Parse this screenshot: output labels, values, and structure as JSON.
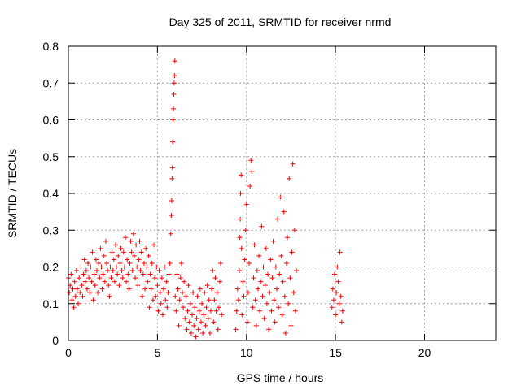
{
  "chart_data": {
    "type": "scatter",
    "title": "Day 325 of 2011, SRMTID for receiver nrmd",
    "xlabel": "GPS time / hours",
    "ylabel": "SRMTID / TECUs",
    "xlim": [
      0,
      24
    ],
    "ylim": [
      0,
      0.8
    ],
    "xticks": [
      0,
      5,
      10,
      15,
      20
    ],
    "yticks": [
      0,
      0.1,
      0.2,
      0.3,
      0.4,
      0.5,
      0.6,
      0.7,
      0.8
    ],
    "xtick_labels": [
      "0",
      "5",
      "10",
      "15",
      "20"
    ],
    "ytick_labels": [
      "0",
      "0.1",
      "0.2",
      "0.3",
      "0.4",
      "0.5",
      "0.6",
      "0.7",
      "0.8"
    ],
    "grid": true,
    "marker": "+",
    "color": "#ff0000",
    "series": [
      {
        "name": "",
        "points": [
          [
            0.0,
            0.17
          ],
          [
            0.05,
            0.13
          ],
          [
            0.1,
            0.15
          ],
          [
            0.15,
            0.18
          ],
          [
            0.2,
            0.11
          ],
          [
            0.25,
            0.14
          ],
          [
            0.3,
            0.09
          ],
          [
            0.35,
            0.16
          ],
          [
            0.4,
            0.12
          ],
          [
            0.45,
            0.19
          ],
          [
            0.5,
            0.14
          ],
          [
            0.55,
            0.1
          ],
          [
            0.6,
            0.17
          ],
          [
            0.65,
            0.13
          ],
          [
            0.7,
            0.2
          ],
          [
            0.75,
            0.15
          ],
          [
            0.8,
            0.12
          ],
          [
            0.85,
            0.18
          ],
          [
            0.9,
            0.22
          ],
          [
            0.95,
            0.16
          ],
          [
            1.0,
            0.19
          ],
          [
            1.05,
            0.14
          ],
          [
            1.1,
            0.21
          ],
          [
            1.15,
            0.17
          ],
          [
            1.2,
            0.13
          ],
          [
            1.25,
            0.2
          ],
          [
            1.3,
            0.16
          ],
          [
            1.35,
            0.24
          ],
          [
            1.4,
            0.11
          ],
          [
            1.45,
            0.18
          ],
          [
            1.5,
            0.15
          ],
          [
            1.55,
            0.22
          ],
          [
            1.6,
            0.19
          ],
          [
            1.65,
            0.13
          ],
          [
            1.7,
            0.21
          ],
          [
            1.75,
            0.17
          ],
          [
            1.8,
            0.25
          ],
          [
            1.85,
            0.2
          ],
          [
            1.9,
            0.14
          ],
          [
            1.95,
            0.18
          ],
          [
            2.0,
            0.23
          ],
          [
            2.05,
            0.16
          ],
          [
            2.1,
            0.27
          ],
          [
            2.15,
            0.21
          ],
          [
            2.2,
            0.19
          ],
          [
            2.25,
            0.15
          ],
          [
            2.3,
            0.12
          ],
          [
            2.35,
            0.2
          ],
          [
            2.4,
            0.17
          ],
          [
            2.45,
            0.24
          ],
          [
            2.5,
            0.19
          ],
          [
            2.55,
            0.22
          ],
          [
            2.6,
            0.16
          ],
          [
            2.65,
            0.26
          ],
          [
            2.7,
            0.2
          ],
          [
            2.75,
            0.18
          ],
          [
            2.8,
            0.23
          ],
          [
            2.85,
            0.15
          ],
          [
            2.9,
            0.21
          ],
          [
            2.95,
            0.25
          ],
          [
            3.0,
            0.19
          ],
          [
            3.05,
            0.17
          ],
          [
            3.1,
            0.24
          ],
          [
            3.15,
            0.2
          ],
          [
            3.2,
            0.28
          ],
          [
            3.25,
            0.16
          ],
          [
            3.3,
            0.22
          ],
          [
            3.35,
            0.18
          ],
          [
            3.4,
            0.14
          ],
          [
            3.45,
            0.21
          ],
          [
            3.5,
            0.27
          ],
          [
            3.55,
            0.24
          ],
          [
            3.6,
            0.19
          ],
          [
            3.65,
            0.29
          ],
          [
            3.7,
            0.23
          ],
          [
            3.75,
            0.17
          ],
          [
            3.8,
            0.26
          ],
          [
            3.85,
            0.2
          ],
          [
            3.9,
            0.15
          ],
          [
            3.95,
            0.22
          ],
          [
            4.0,
            0.27
          ],
          [
            4.05,
            0.19
          ],
          [
            4.1,
            0.24
          ],
          [
            4.15,
            0.12
          ],
          [
            4.2,
            0.18
          ],
          [
            4.25,
            0.21
          ],
          [
            4.3,
            0.14
          ],
          [
            4.35,
            0.25
          ],
          [
            4.4,
            0.2
          ],
          [
            4.45,
            0.16
          ],
          [
            4.5,
            0.23
          ],
          [
            4.55,
            0.09
          ],
          [
            4.6,
            0.18
          ],
          [
            4.65,
            0.14
          ],
          [
            4.7,
            0.21
          ],
          [
            4.75,
            0.11
          ],
          [
            4.8,
            0.26
          ],
          [
            4.85,
            0.17
          ],
          [
            4.9,
            0.12
          ],
          [
            4.95,
            0.2
          ],
          [
            5.0,
            0.15
          ],
          [
            5.05,
            0.08
          ],
          [
            5.1,
            0.19
          ],
          [
            5.15,
            0.13
          ],
          [
            5.2,
            0.1
          ],
          [
            5.25,
            0.17
          ],
          [
            5.3,
            0.07
          ],
          [
            5.35,
            0.14
          ],
          [
            5.4,
            0.2
          ],
          [
            5.45,
            0.11
          ],
          [
            5.5,
            0.16
          ],
          [
            5.55,
            0.09
          ],
          [
            5.6,
            0.13
          ],
          [
            5.65,
            0.18
          ],
          [
            5.7,
            0.21
          ],
          [
            5.75,
            0.29
          ],
          [
            5.78,
            0.34
          ],
          [
            5.8,
            0.38
          ],
          [
            5.82,
            0.44
          ],
          [
            5.84,
            0.47
          ],
          [
            5.86,
            0.54
          ],
          [
            5.88,
            0.6
          ],
          [
            5.9,
            0.63
          ],
          [
            5.92,
            0.67
          ],
          [
            5.94,
            0.7
          ],
          [
            5.96,
            0.72
          ],
          [
            5.98,
            0.76
          ],
          [
            6.0,
            0.12
          ],
          [
            6.05,
            0.08
          ],
          [
            6.1,
            0.18
          ],
          [
            6.15,
            0.14
          ],
          [
            6.2,
            0.04
          ],
          [
            6.25,
            0.11
          ],
          [
            6.3,
            0.17
          ],
          [
            6.35,
            0.21
          ],
          [
            6.4,
            0.13
          ],
          [
            6.45,
            0.09
          ],
          [
            6.5,
            0.16
          ],
          [
            6.55,
            0.06
          ],
          [
            6.6,
            0.12
          ],
          [
            6.65,
            0.03
          ],
          [
            6.7,
            0.08
          ],
          [
            6.75,
            0.15
          ],
          [
            6.8,
            0.05
          ],
          [
            6.85,
            0.1
          ],
          [
            6.9,
            0.02
          ],
          [
            6.95,
            0.07
          ],
          [
            7.0,
            0.13
          ],
          [
            7.05,
            0.04
          ],
          [
            7.1,
            0.09
          ],
          [
            7.15,
            0.01
          ],
          [
            7.2,
            0.06
          ],
          [
            7.25,
            0.12
          ],
          [
            7.3,
            0.03
          ],
          [
            7.35,
            0.08
          ],
          [
            7.4,
            0.14
          ],
          [
            7.45,
            0.05
          ],
          [
            7.5,
            0.1
          ],
          [
            7.55,
            0.02
          ],
          [
            7.6,
            0.07
          ],
          [
            7.65,
            0.13
          ],
          [
            7.7,
            0.04
          ],
          [
            7.75,
            0.09
          ],
          [
            7.8,
            0.15
          ],
          [
            7.85,
            0.06
          ],
          [
            7.9,
            0.11
          ],
          [
            7.95,
            0.02
          ],
          [
            8.0,
            0.08
          ],
          [
            8.05,
            0.14
          ],
          [
            8.1,
            0.19
          ],
          [
            8.15,
            0.05
          ],
          [
            8.2,
            0.11
          ],
          [
            8.25,
            0.17
          ],
          [
            8.3,
            0.08
          ],
          [
            8.35,
            0.13
          ],
          [
            8.4,
            0.03
          ],
          [
            8.45,
            0.09
          ],
          [
            8.5,
            0.16
          ],
          [
            8.55,
            0.21
          ],
          [
            8.6,
            0.07
          ],
          [
            9.4,
            0.03
          ],
          [
            9.45,
            0.08
          ],
          [
            9.5,
            0.14
          ],
          [
            9.55,
            0.11
          ],
          [
            9.6,
            0.19
          ],
          [
            9.62,
            0.28
          ],
          [
            9.65,
            0.33
          ],
          [
            9.67,
            0.4
          ],
          [
            9.7,
            0.45
          ],
          [
            9.72,
            0.25
          ],
          [
            9.75,
            0.07
          ],
          [
            9.8,
            0.16
          ],
          [
            9.85,
            0.12
          ],
          [
            9.9,
            0.22
          ],
          [
            9.95,
            0.3
          ],
          [
            10.0,
            0.37
          ],
          [
            10.05,
            0.05
          ],
          [
            10.1,
            0.13
          ],
          [
            10.15,
            0.21
          ],
          [
            10.2,
            0.42
          ],
          [
            10.25,
            0.49
          ],
          [
            10.3,
            0.46
          ],
          [
            10.35,
            0.09
          ],
          [
            10.4,
            0.17
          ],
          [
            10.45,
            0.26
          ],
          [
            10.5,
            0.11
          ],
          [
            10.55,
            0.04
          ],
          [
            10.6,
            0.19
          ],
          [
            10.65,
            0.14
          ],
          [
            10.7,
            0.23
          ],
          [
            10.75,
            0.08
          ],
          [
            10.8,
            0.16
          ],
          [
            10.85,
            0.31
          ],
          [
            10.9,
            0.12
          ],
          [
            10.95,
            0.2
          ],
          [
            11.0,
            0.06
          ],
          [
            11.05,
            0.15
          ],
          [
            11.1,
            0.25
          ],
          [
            11.15,
            0.1
          ],
          [
            11.2,
            0.18
          ],
          [
            11.25,
            0.03
          ],
          [
            11.3,
            0.13
          ],
          [
            11.35,
            0.22
          ],
          [
            11.4,
            0.08
          ],
          [
            11.45,
            0.17
          ],
          [
            11.5,
            0.27
          ],
          [
            11.55,
            0.11
          ],
          [
            11.6,
            0.05
          ],
          [
            11.65,
            0.2
          ],
          [
            11.7,
            0.14
          ],
          [
            11.75,
            0.33
          ],
          [
            11.8,
            0.09
          ],
          [
            11.85,
            0.18
          ],
          [
            11.9,
            0.39
          ],
          [
            11.95,
            0.23
          ],
          [
            12.0,
            0.07
          ],
          [
            12.05,
            0.16
          ],
          [
            12.1,
            0.35
          ],
          [
            12.15,
            0.12
          ],
          [
            12.2,
            0.02
          ],
          [
            12.25,
            0.21
          ],
          [
            12.3,
            0.28
          ],
          [
            12.35,
            0.1
          ],
          [
            12.4,
            0.44
          ],
          [
            12.45,
            0.17
          ],
          [
            12.5,
            0.04
          ],
          [
            12.55,
            0.24
          ],
          [
            12.6,
            0.48
          ],
          [
            12.65,
            0.13
          ],
          [
            12.7,
            0.3
          ],
          [
            12.75,
            0.08
          ],
          [
            12.8,
            0.19
          ],
          [
            14.8,
            0.09
          ],
          [
            14.85,
            0.14
          ],
          [
            14.9,
            0.11
          ],
          [
            14.95,
            0.18
          ],
          [
            15.0,
            0.07
          ],
          [
            15.05,
            0.13
          ],
          [
            15.1,
            0.2
          ],
          [
            15.15,
            0.16
          ],
          [
            15.2,
            0.1
          ],
          [
            15.25,
            0.24
          ],
          [
            15.3,
            0.12
          ],
          [
            15.35,
            0.05
          ],
          [
            15.4,
            0.08
          ]
        ]
      }
    ]
  }
}
